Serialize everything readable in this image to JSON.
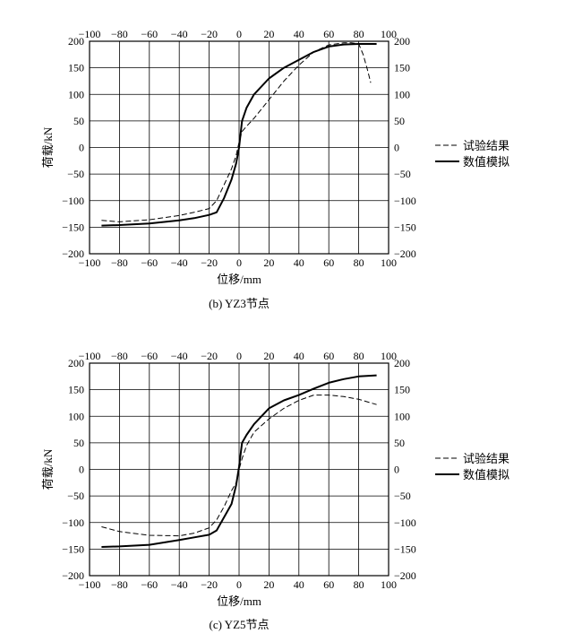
{
  "chart_data": [
    {
      "type": "line",
      "caption": "(b) YZ3节点",
      "xlabel": "位移/mm",
      "ylabel": "荷载/kN",
      "xlim": [
        -100,
        100
      ],
      "ylim": [
        -200,
        200
      ],
      "xticks": [
        "−100",
        "−80",
        "−60",
        "−40",
        "−20",
        "0",
        "20",
        "40",
        "60",
        "80",
        "100"
      ],
      "yticks": [
        "−200",
        "−150",
        "−100",
        "−50",
        "0",
        "50",
        "100",
        "150",
        "200"
      ],
      "grid": true,
      "legend_position": "right",
      "series": [
        {
          "name": "试验结果",
          "style": "dashed",
          "x": [
            -92,
            -80,
            -60,
            -40,
            -30,
            -20,
            -15,
            -10,
            -5,
            -2,
            0,
            2,
            5,
            10,
            20,
            30,
            40,
            50,
            60,
            70,
            75,
            80,
            83,
            86,
            88
          ],
          "y": [
            -137,
            -140,
            -136,
            -128,
            -122,
            -115,
            -100,
            -70,
            -40,
            -15,
            10,
            30,
            40,
            55,
            90,
            125,
            155,
            180,
            193,
            197,
            197,
            195,
            175,
            145,
            122
          ]
        },
        {
          "name": "数值模拟",
          "style": "solid",
          "x": [
            -92,
            -80,
            -60,
            -40,
            -30,
            -20,
            -15,
            -10,
            -5,
            -2,
            0,
            2,
            5,
            10,
            20,
            30,
            40,
            50,
            60,
            70,
            80,
            92
          ],
          "y": [
            -147,
            -146,
            -143,
            -137,
            -133,
            -127,
            -122,
            -95,
            -60,
            -30,
            0,
            50,
            75,
            100,
            130,
            150,
            165,
            180,
            190,
            194,
            195,
            195
          ]
        }
      ]
    },
    {
      "type": "line",
      "caption": "(c) YZ5节点",
      "xlabel": "位移/mm",
      "ylabel": "荷载/kN",
      "xlim": [
        -100,
        100
      ],
      "ylim": [
        -200,
        200
      ],
      "xticks": [
        "−100",
        "−80",
        "−60",
        "−40",
        "−20",
        "0",
        "20",
        "40",
        "60",
        "80",
        "100"
      ],
      "yticks": [
        "−200",
        "−150",
        "−100",
        "−50",
        "0",
        "50",
        "100",
        "150",
        "200"
      ],
      "grid": true,
      "legend_position": "right",
      "series": [
        {
          "name": "试验结果",
          "style": "dashed",
          "x": [
            -92,
            -80,
            -60,
            -40,
            -30,
            -20,
            -15,
            -10,
            -5,
            -2,
            0,
            2,
            5,
            10,
            20,
            30,
            40,
            50,
            60,
            70,
            80,
            92
          ],
          "y": [
            -108,
            -117,
            -124,
            -125,
            -120,
            -110,
            -95,
            -70,
            -40,
            -25,
            0,
            20,
            45,
            70,
            95,
            115,
            130,
            140,
            140,
            137,
            132,
            122
          ]
        },
        {
          "name": "数值模拟",
          "style": "solid",
          "x": [
            -92,
            -80,
            -60,
            -40,
            -30,
            -20,
            -15,
            -10,
            -5,
            -2,
            0,
            2,
            5,
            10,
            20,
            30,
            40,
            50,
            60,
            70,
            80,
            92
          ],
          "y": [
            -146,
            -145,
            -142,
            -133,
            -128,
            -123,
            -115,
            -90,
            -65,
            -30,
            5,
            50,
            65,
            85,
            115,
            130,
            140,
            152,
            163,
            170,
            175,
            177
          ]
        }
      ]
    }
  ]
}
